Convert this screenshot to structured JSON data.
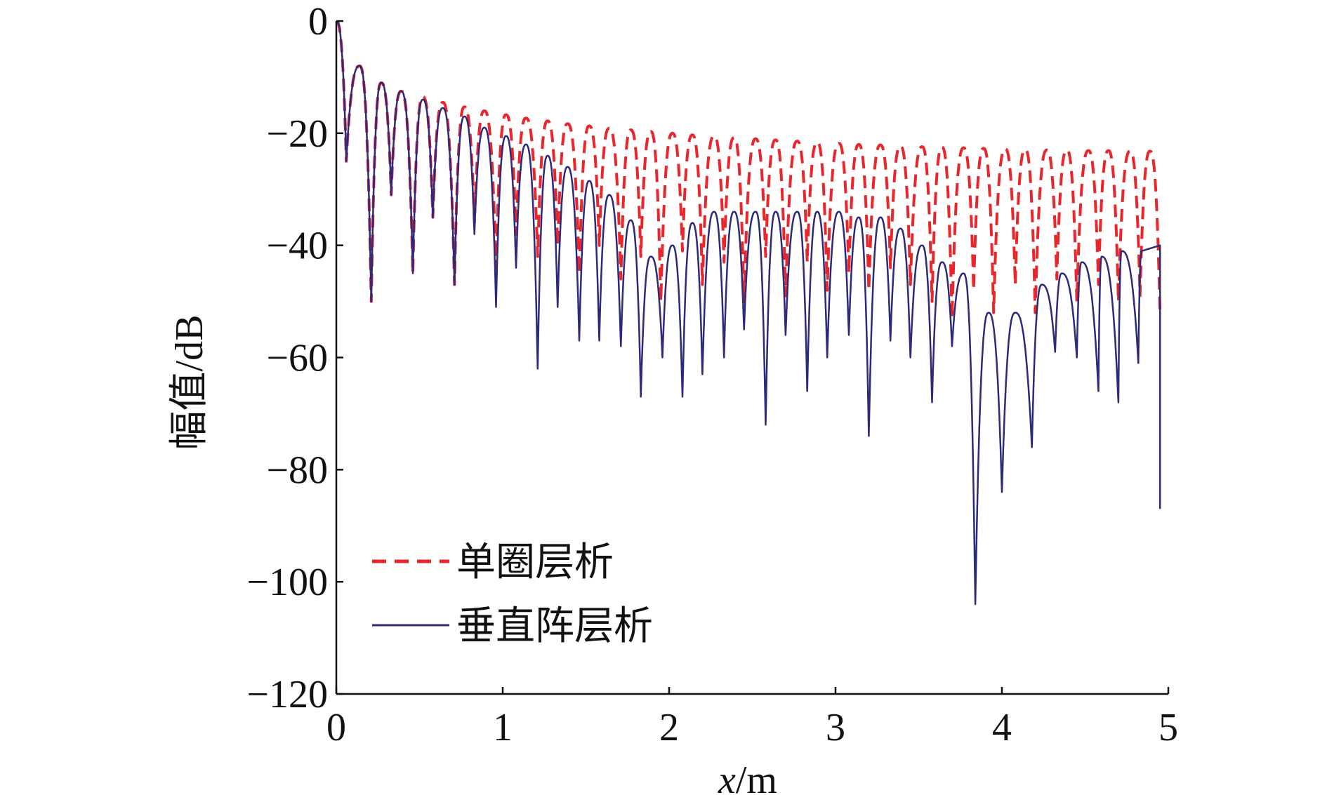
{
  "chart_data": {
    "type": "line",
    "xlabel": {
      "var": "x",
      "unit": "/m"
    },
    "ylabel": "幅值/dB",
    "xlim": [
      0,
      5
    ],
    "ylim": [
      -120,
      0
    ],
    "xticks": [
      "0",
      "1",
      "2",
      "3",
      "4",
      "5"
    ],
    "xtick_values": [
      0,
      1,
      2,
      3,
      4,
      5
    ],
    "yticks": [
      "0",
      "−20",
      "−40",
      "−60",
      "−80",
      "−100",
      "−120"
    ],
    "ytick_values": [
      0,
      -20,
      -40,
      -60,
      -80,
      -100,
      -120
    ],
    "grid": false,
    "legend_position": "lower-left",
    "series": [
      {
        "name": "单圈层析",
        "color": "#e8272d",
        "dash": "dashed",
        "peaks": [
          [
            0.0,
            0
          ],
          [
            0.14,
            -8
          ],
          [
            0.27,
            -11
          ],
          [
            0.39,
            -12.5
          ],
          [
            0.52,
            -13.5
          ],
          [
            0.64,
            -14.5
          ],
          [
            0.77,
            -15.3
          ],
          [
            0.89,
            -16
          ],
          [
            1.02,
            -16.7
          ],
          [
            1.14,
            -17.3
          ],
          [
            1.27,
            -17.8
          ],
          [
            1.39,
            -18.3
          ],
          [
            1.52,
            -18.7
          ],
          [
            1.64,
            -19.1
          ],
          [
            1.77,
            -19.4
          ],
          [
            1.89,
            -19.7
          ],
          [
            2.02,
            -20
          ],
          [
            2.14,
            -20.3
          ],
          [
            2.27,
            -20.5
          ],
          [
            2.39,
            -20.8
          ],
          [
            2.52,
            -21
          ],
          [
            2.64,
            -21.2
          ],
          [
            2.77,
            -21.4
          ],
          [
            2.89,
            -21.6
          ],
          [
            3.02,
            -21.8
          ],
          [
            3.14,
            -22
          ],
          [
            3.27,
            -22.1
          ],
          [
            3.39,
            -22.3
          ],
          [
            3.52,
            -22.4
          ],
          [
            3.64,
            -22.5
          ],
          [
            3.77,
            -22.6
          ],
          [
            3.89,
            -22.7
          ],
          [
            4.02,
            -22.8
          ],
          [
            4.14,
            -22.9
          ],
          [
            4.27,
            -23
          ],
          [
            4.39,
            -23
          ],
          [
            4.52,
            -23.1
          ],
          [
            4.64,
            -23.1
          ],
          [
            4.77,
            -23.2
          ],
          [
            4.89,
            -23.2
          ]
        ],
        "nulls": [
          [
            0.06,
            -25
          ],
          [
            0.21,
            -50
          ],
          [
            0.33,
            -31
          ],
          [
            0.46,
            -45
          ],
          [
            0.58,
            -35
          ],
          [
            0.71,
            -47
          ],
          [
            0.83,
            -36
          ],
          [
            0.96,
            -44
          ],
          [
            1.08,
            -38
          ],
          [
            1.21,
            -42
          ],
          [
            1.33,
            -40
          ],
          [
            1.46,
            -45
          ],
          [
            1.58,
            -40
          ],
          [
            1.71,
            -46
          ],
          [
            1.83,
            -42
          ],
          [
            1.95,
            -50
          ],
          [
            2.08,
            -41
          ],
          [
            2.2,
            -47
          ],
          [
            2.33,
            -43
          ],
          [
            2.45,
            -50
          ],
          [
            2.58,
            -42
          ],
          [
            2.7,
            -49
          ],
          [
            2.83,
            -43
          ],
          [
            2.95,
            -48
          ],
          [
            3.08,
            -45
          ],
          [
            3.2,
            -48
          ],
          [
            3.33,
            -44
          ],
          [
            3.45,
            -47
          ],
          [
            3.58,
            -50
          ],
          [
            3.7,
            -53
          ],
          [
            3.83,
            -48
          ],
          [
            3.95,
            -52
          ],
          [
            4.08,
            -47
          ],
          [
            4.2,
            -52
          ],
          [
            4.33,
            -46
          ],
          [
            4.45,
            -50
          ],
          [
            4.58,
            -47
          ],
          [
            4.7,
            -50
          ],
          [
            4.83,
            -49
          ],
          [
            4.95,
            -52
          ]
        ]
      },
      {
        "name": "垂直阵层析",
        "color": "#2e2a7a",
        "dash": "solid",
        "peaks": [
          [
            0.0,
            0
          ],
          [
            0.14,
            -8
          ],
          [
            0.27,
            -11
          ],
          [
            0.39,
            -12.5
          ],
          [
            0.52,
            -14
          ],
          [
            0.64,
            -15.5
          ],
          [
            0.77,
            -17
          ],
          [
            0.89,
            -19
          ],
          [
            1.02,
            -20.5
          ],
          [
            1.14,
            -22
          ],
          [
            1.27,
            -24
          ],
          [
            1.39,
            -26
          ],
          [
            1.52,
            -28.5
          ],
          [
            1.64,
            -31
          ],
          [
            1.77,
            -35.5
          ],
          [
            1.89,
            -42
          ],
          [
            2.02,
            -40
          ],
          [
            2.14,
            -36
          ],
          [
            2.27,
            -34
          ],
          [
            2.39,
            -34
          ],
          [
            2.52,
            -34
          ],
          [
            2.64,
            -34
          ],
          [
            2.77,
            -34
          ],
          [
            2.89,
            -34
          ],
          [
            3.02,
            -34
          ],
          [
            3.14,
            -35
          ],
          [
            3.27,
            -35
          ],
          [
            3.39,
            -37
          ],
          [
            3.52,
            -40
          ],
          [
            3.64,
            -43
          ],
          [
            3.77,
            -45
          ],
          [
            3.92,
            -52
          ],
          [
            4.08,
            -52
          ],
          [
            4.24,
            -47
          ],
          [
            4.36,
            -45
          ],
          [
            4.48,
            -43
          ],
          [
            4.6,
            -42
          ],
          [
            4.72,
            -41
          ],
          [
            4.84,
            -41
          ],
          [
            4.95,
            -40
          ]
        ],
        "nulls": [
          [
            0.06,
            -25
          ],
          [
            0.21,
            -50
          ],
          [
            0.33,
            -31
          ],
          [
            0.46,
            -45
          ],
          [
            0.58,
            -35
          ],
          [
            0.71,
            -47
          ],
          [
            0.83,
            -38
          ],
          [
            0.96,
            -51
          ],
          [
            1.08,
            -44
          ],
          [
            1.21,
            -62
          ],
          [
            1.33,
            -51
          ],
          [
            1.46,
            -57
          ],
          [
            1.58,
            -57
          ],
          [
            1.71,
            -58
          ],
          [
            1.83,
            -67
          ],
          [
            1.96,
            -60
          ],
          [
            2.08,
            -67
          ],
          [
            2.2,
            -63
          ],
          [
            2.33,
            -60
          ],
          [
            2.45,
            -55
          ],
          [
            2.58,
            -72
          ],
          [
            2.7,
            -56
          ],
          [
            2.83,
            -66
          ],
          [
            2.95,
            -60
          ],
          [
            3.08,
            -56
          ],
          [
            3.2,
            -74
          ],
          [
            3.33,
            -57
          ],
          [
            3.45,
            -60
          ],
          [
            3.58,
            -68
          ],
          [
            3.7,
            -58
          ],
          [
            3.84,
            -104
          ],
          [
            4.0,
            -84
          ],
          [
            4.18,
            -76
          ],
          [
            4.32,
            -59
          ],
          [
            4.45,
            -60
          ],
          [
            4.58,
            -66
          ],
          [
            4.7,
            -68
          ],
          [
            4.82,
            -61
          ],
          [
            4.95,
            -87
          ]
        ]
      }
    ]
  }
}
